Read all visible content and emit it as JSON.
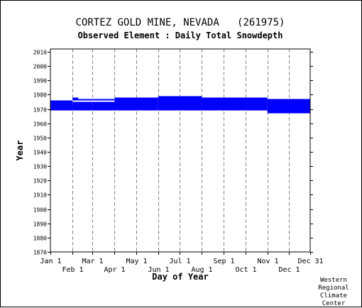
{
  "chart_data": {
    "type": "bar",
    "title": "CORTEZ GOLD MINE, NEVADA   (261975)",
    "subtitle": "Observed Element : Daily Total Snowdepth",
    "xlabel": "Day of Year",
    "ylabel": "Year",
    "xlim": [
      1,
      365
    ],
    "ylim": [
      1870,
      2012
    ],
    "y_ticks": [
      1870,
      1880,
      1890,
      1900,
      1910,
      1920,
      1930,
      1940,
      1950,
      1960,
      1970,
      1980,
      1990,
      2000,
      2010
    ],
    "x_ticks_upper": [
      {
        "label": "Jan 1",
        "day": 1
      },
      {
        "label": "Mar 1",
        "day": 60
      },
      {
        "label": "May 1",
        "day": 121
      },
      {
        "label": "Jul 1",
        "day": 182
      },
      {
        "label": "Sep 1",
        "day": 244
      },
      {
        "label": "Nov 1",
        "day": 305
      },
      {
        "label": "Dec 31",
        "day": 365
      }
    ],
    "x_ticks_lower": [
      {
        "label": "Feb 1",
        "day": 32
      },
      {
        "label": "Apr 1",
        "day": 91
      },
      {
        "label": "Jun 1",
        "day": 152
      },
      {
        "label": "Aug 1",
        "day": 213
      },
      {
        "label": "Oct 1",
        "day": 274
      },
      {
        "label": "Dec 1",
        "day": 335
      }
    ],
    "grid": "vertical dashed at month starts",
    "series_color": "#0000ff",
    "data_coverage": [
      {
        "start_day": 1,
        "end_day": 32,
        "year_start": 1969,
        "year_end": 1976
      },
      {
        "start_day": 32,
        "end_day": 60,
        "year_start": 1969,
        "year_end": 1978
      },
      {
        "start_day": 60,
        "end_day": 91,
        "year_start": 1969,
        "year_end": 1978
      },
      {
        "start_day": 91,
        "end_day": 152,
        "year_start": 1969,
        "year_end": 1978
      },
      {
        "start_day": 152,
        "end_day": 213,
        "year_start": 1969,
        "year_end": 1979
      },
      {
        "start_day": 213,
        "end_day": 305,
        "year_start": 1969,
        "year_end": 1978
      },
      {
        "start_day": 305,
        "end_day": 365,
        "year_start": 1967,
        "year_end": 1977
      }
    ],
    "gaps": [
      {
        "start_day": 32,
        "end_day": 91,
        "year": 1975
      },
      {
        "start_day": 40,
        "end_day": 91,
        "year": 1977
      }
    ]
  },
  "credit": {
    "line1": "Western",
    "line2": "Regional",
    "line3": "Climate",
    "line4": "Center"
  }
}
